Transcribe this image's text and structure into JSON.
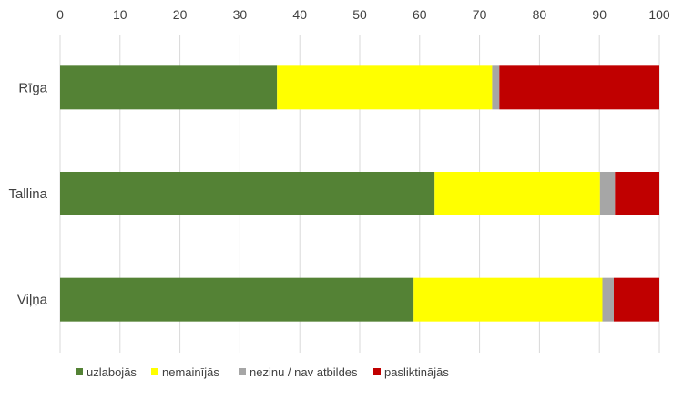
{
  "chart_data": {
    "type": "bar",
    "orientation": "horizontal",
    "stacked": true,
    "categories": [
      "Rīga",
      "Tallina",
      "Viļņa"
    ],
    "series": [
      {
        "name": "uzlabojās",
        "color": "#548235",
        "values": [
          36.2,
          62.5,
          59.0
        ]
      },
      {
        "name": "nemainījās",
        "color": "#FFFF00",
        "values": [
          35.9,
          27.6,
          31.5
        ]
      },
      {
        "name": "nezinu / nav atbildes",
        "color": "#A6A6A6",
        "values": [
          1.2,
          2.5,
          1.9
        ]
      },
      {
        "name": "pasliktinājās",
        "color": "#C00000",
        "values": [
          26.7,
          7.4,
          7.6
        ]
      }
    ],
    "x_ticks": [
      "0",
      "10",
      "20",
      "30",
      "40",
      "50",
      "60",
      "70",
      "80",
      "90",
      "100"
    ],
    "xlim": [
      0,
      100
    ],
    "x_axis_position": "top",
    "grid": true,
    "legend_position": "bottom"
  }
}
